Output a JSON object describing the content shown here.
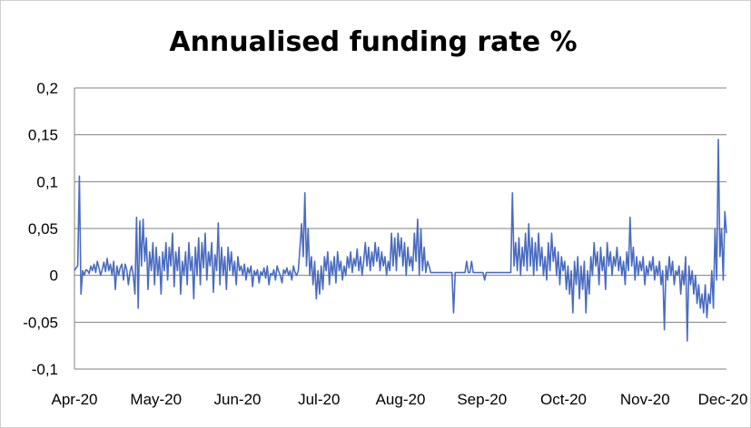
{
  "chart_data": {
    "type": "line",
    "title": "Annualised funding rate %",
    "xlabel": "",
    "ylabel": "",
    "ylim": [
      -0.1,
      0.2
    ],
    "y_ticks": [
      "0,2",
      "0,15",
      "0,1",
      "0,05",
      "0",
      "-0,05",
      "-0,1"
    ],
    "y_tick_values": [
      0.2,
      0.15,
      0.1,
      0.05,
      0,
      -0.05,
      -0.1
    ],
    "x_ticks": [
      "Apr-20",
      "May-20",
      "Jun-20",
      "Jul-20",
      "Aug-20",
      "Sep-20",
      "Oct-20",
      "Nov-20",
      "Dec-20"
    ],
    "grid": "horizontal",
    "legend": "none",
    "series_color": "#4a6cc0",
    "series": [
      {
        "values": [
          0.005,
          0.008,
          0.01,
          0.106,
          -0.02,
          0.005,
          0.0,
          0.006,
          0.005,
          0.002,
          0.01,
          0.005,
          0.012,
          0.003,
          0.015,
          0.008,
          0.0,
          0.006,
          0.014,
          0.004,
          0.018,
          0.005,
          0.012,
          0.0,
          0.015,
          -0.015,
          0.01,
          0.0,
          0.008,
          0.012,
          -0.005,
          0.012,
          0.006,
          -0.01,
          0.004,
          0.01,
          0.0,
          -0.02,
          0.062,
          -0.035,
          0.058,
          0.01,
          0.06,
          0.015,
          0.04,
          -0.015,
          0.025,
          0.005,
          0.035,
          -0.01,
          0.03,
          0.0,
          0.02,
          -0.02,
          0.025,
          0.005,
          0.035,
          -0.005,
          0.03,
          0.01,
          0.045,
          -0.012,
          0.025,
          0.005,
          0.03,
          -0.02,
          0.015,
          0.0,
          0.025,
          -0.01,
          0.035,
          0.005,
          0.02,
          -0.025,
          0.03,
          0.0,
          0.04,
          -0.01,
          0.035,
          0.008,
          0.045,
          -0.005,
          0.025,
          0.01,
          0.035,
          -0.018,
          0.022,
          0.005,
          0.056,
          -0.01,
          0.03,
          0.0,
          0.02,
          -0.015,
          0.03,
          0.005,
          0.025,
          0.0,
          0.015,
          -0.01,
          0.02,
          0.005,
          0.01,
          0.0,
          0.012,
          -0.005,
          0.008,
          0.002,
          0.01,
          -0.012,
          0.005,
          0.0,
          0.006,
          -0.008,
          0.004,
          0.0,
          0.008,
          -0.003,
          0.01,
          -0.01,
          0.002,
          0.0,
          0.006,
          -0.005,
          0.01,
          0.004,
          0.0,
          -0.008,
          0.006,
          0.002,
          0.008,
          0.0,
          0.005,
          -0.005,
          0.01,
          0.003,
          0.0,
          0.005,
          0.03,
          0.055,
          0.02,
          0.088,
          0.01,
          0.05,
          0.0,
          0.02,
          -0.01,
          0.015,
          -0.025,
          0.005,
          -0.02,
          0.01,
          -0.015,
          0.02,
          0.005,
          0.025,
          -0.01,
          0.015,
          0.0,
          0.02,
          -0.008,
          0.025,
          0.005,
          0.015,
          -0.005,
          0.01,
          0.0,
          0.02,
          0.008,
          0.025,
          0.003,
          0.018,
          0.01,
          0.028,
          0.005,
          0.02,
          0.0,
          0.015,
          0.035,
          0.01,
          0.03,
          0.005,
          0.025,
          0.01,
          0.035,
          0.015,
          0.03,
          0.005,
          0.025,
          0.01,
          0.02,
          0.0,
          0.015,
          0.005,
          0.045,
          0.01,
          0.04,
          0.005,
          0.045,
          0.02,
          0.04,
          0.01,
          0.035,
          0.0,
          0.03,
          0.01,
          0.02,
          0.005,
          0.045,
          0.015,
          0.06,
          0.0,
          0.05,
          0.005,
          0.03,
          0.003,
          0.015,
          0.01,
          0.003,
          0.003,
          0.003,
          0.003,
          0.003,
          0.003,
          0.003,
          0.003,
          0.003,
          0.003,
          0.003,
          0.003,
          0.003,
          0.003,
          -0.04,
          0.003,
          0.003,
          0.003,
          0.003,
          0.003,
          0.003,
          0.003,
          0.015,
          0.003,
          0.003,
          0.015,
          0.003,
          0.003,
          0.003,
          0.003,
          0.003,
          0.003,
          0.003,
          -0.005,
          0.003,
          0.003,
          0.003,
          0.003,
          0.003,
          0.003,
          0.003,
          0.003,
          0.003,
          0.003,
          0.003,
          0.003,
          0.003,
          0.003,
          0.003,
          0.003,
          0.088,
          0.01,
          0.035,
          0.005,
          0.04,
          0.0,
          0.03,
          0.01,
          0.045,
          0.005,
          0.055,
          0.01,
          0.04,
          0.0,
          0.035,
          0.005,
          0.045,
          0.01,
          0.03,
          0.0,
          0.02,
          -0.005,
          0.035,
          0.005,
          0.045,
          0.015,
          0.03,
          0.0,
          0.025,
          -0.01,
          0.02,
          0.005,
          0.015,
          -0.015,
          0.01,
          -0.02,
          0.005,
          -0.04,
          0.015,
          -0.01,
          0.02,
          -0.025,
          0.01,
          -0.015,
          0.015,
          -0.04,
          0.005,
          -0.02,
          0.02,
          0.0,
          0.035,
          0.01,
          0.025,
          -0.01,
          0.03,
          0.005,
          0.02,
          -0.015,
          0.035,
          0.01,
          0.025,
          0.0,
          0.02,
          0.01,
          0.03,
          0.005,
          0.02,
          0.0,
          0.015,
          -0.01,
          0.025,
          0.005,
          0.062,
          0.01,
          0.03,
          -0.005,
          0.02,
          0.0,
          0.015,
          0.005,
          0.02,
          -0.01,
          0.01,
          0.0,
          0.015,
          0.005,
          0.02,
          -0.005,
          0.01,
          0.0,
          0.015,
          -0.01,
          0.005,
          -0.058,
          0.01,
          -0.005,
          0.02,
          0.0,
          0.015,
          -0.01,
          0.005,
          0.0,
          0.01,
          -0.02,
          0.005,
          -0.01,
          0.02,
          -0.07,
          0.01,
          -0.01,
          0.005,
          -0.02,
          0.0,
          -0.03,
          -0.01,
          -0.035,
          -0.02,
          -0.04,
          -0.01,
          -0.045,
          -0.02,
          -0.03,
          0.005,
          -0.035,
          0.05,
          -0.005,
          0.145,
          0.02,
          0.05,
          -0.005,
          0.068,
          0.045
        ]
      }
    ]
  }
}
